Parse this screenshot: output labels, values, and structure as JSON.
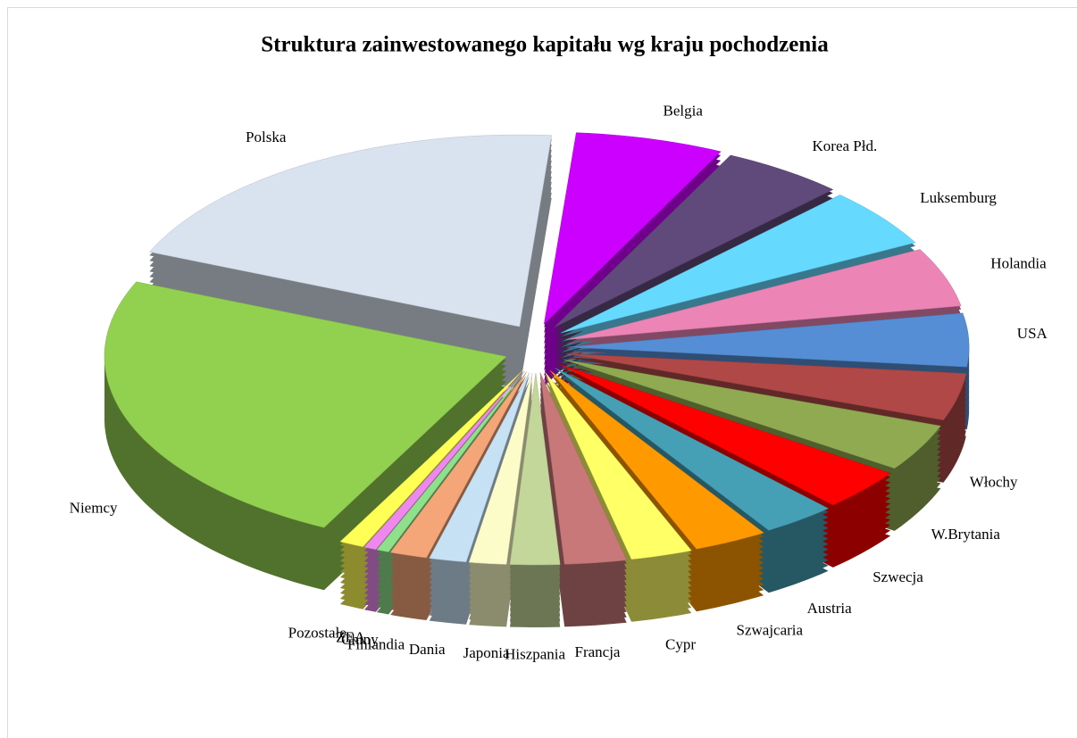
{
  "chart_data": {
    "type": "pie",
    "title": "Struktura zainwestowanego kapitału wg kraju pochodzenia",
    "categories": [
      "Belgia",
      "Korea Płd.",
      "Luksemburg",
      "Holandia",
      "USA",
      "Włochy",
      "W.Brytania",
      "Szwecja",
      "Austria",
      "Szwajcaria",
      "Cypr",
      "Francja",
      "Hiszpania",
      "Japonia",
      "Dania",
      "Finlandia",
      "Chiny",
      "ZEA",
      "Pozostałe",
      "Niemcy",
      "Polska"
    ],
    "values": [
      6,
      5,
      5,
      5,
      4.5,
      4,
      4,
      3.5,
      3,
      3,
      2.5,
      2.5,
      2,
      1.5,
      1.5,
      1.5,
      0.5,
      0.5,
      1,
      24,
      20
    ],
    "colors": [
      "#cc00ff",
      "#604a7b",
      "#66d9ff",
      "#ec85b5",
      "#558ed5",
      "#b04848",
      "#8faa50",
      "#ff0000",
      "#45a0b5",
      "#ff9900",
      "#ffff66",
      "#c87878",
      "#c4d79b",
      "#fcfcc8",
      "#c6e0f4",
      "#f4a678",
      "#8fe08a",
      "#ee88ee",
      "#ffff55",
      "#92d050",
      "#d9e2ef"
    ]
  }
}
